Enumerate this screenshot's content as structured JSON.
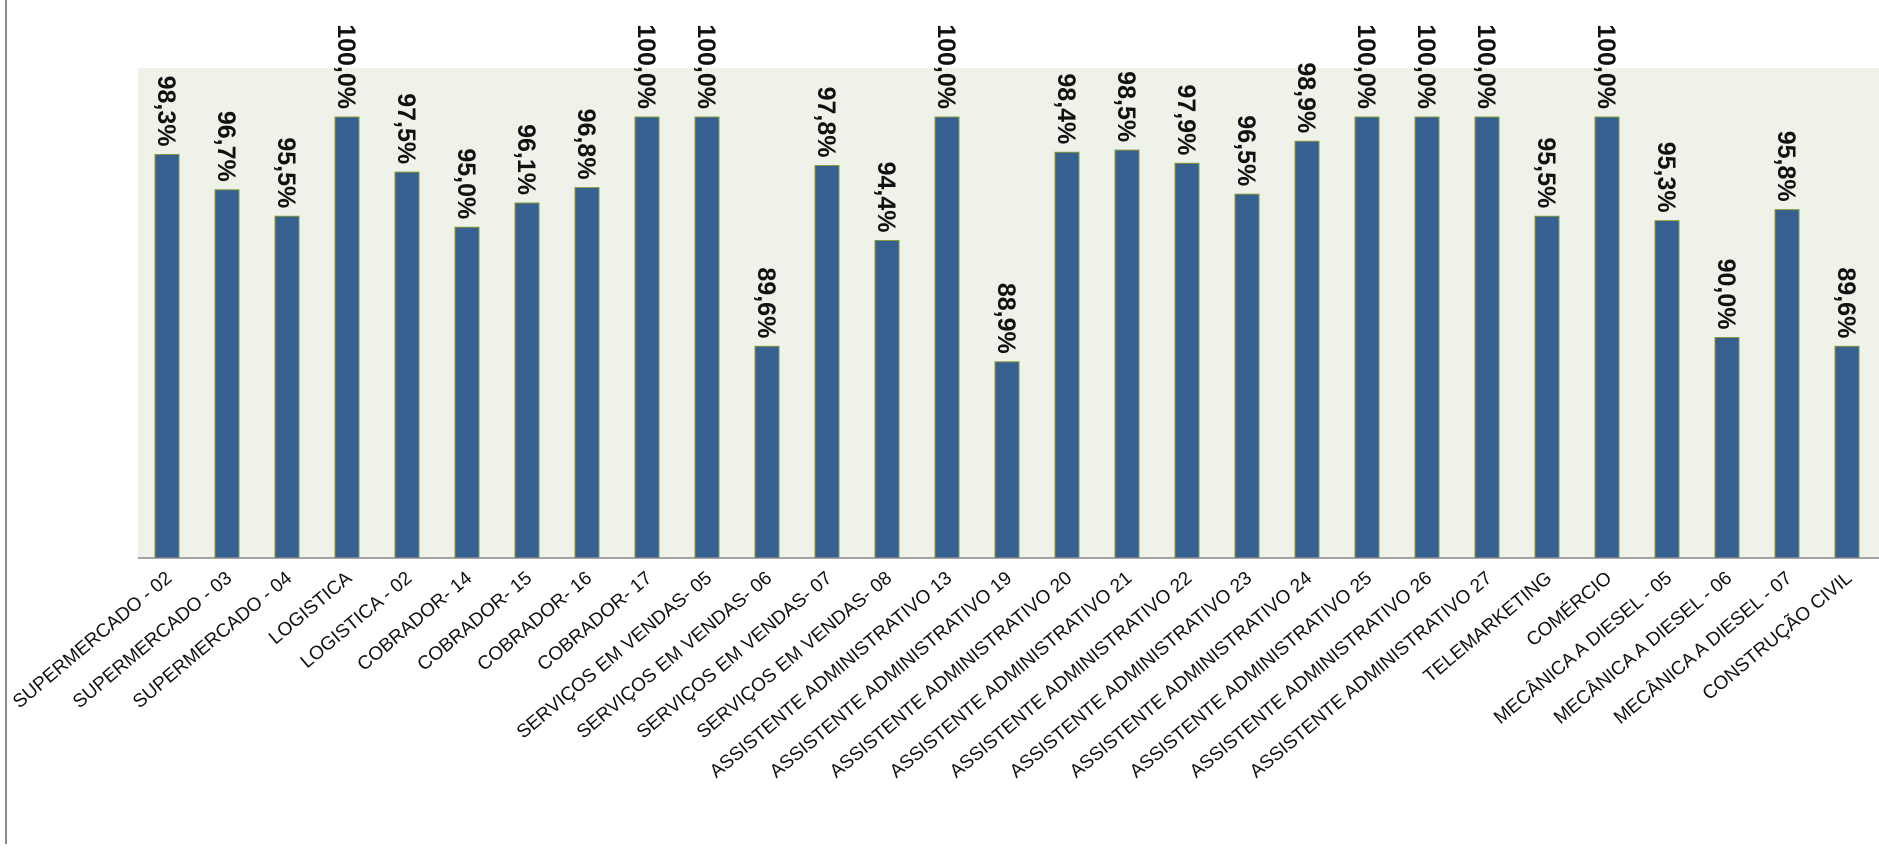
{
  "chart_data": {
    "type": "bar",
    "title": "",
    "xlabel": "",
    "ylabel": "",
    "ylim": [
      80,
      100
    ],
    "grid": false,
    "legend": "none",
    "categories": [
      "SUPERMERCADO - 02",
      "SUPERMERCADO - 03",
      "SUPERMERCADO - 04",
      "LOGISTICA",
      "LOGISTICA - 02",
      "COBRADOR- 14",
      "COBRADOR- 15",
      "COBRADOR- 16",
      "COBRADOR- 17",
      "SERVIÇOS EM VENDAS- 05",
      "SERVIÇOS EM VENDAS- 06",
      "SERVIÇOS EM VENDAS- 07",
      "SERVIÇOS EM VENDAS- 08",
      "ASSISTENTE ADMINISTRATIVO 13",
      "ASSISTENTE ADMINISTRATIVO 19",
      "ASSISTENTE ADMINISTRATIVO 20",
      "ASSISTENTE ADMINISTRATIVO 21",
      "ASSISTENTE ADMINISTRATIVO 22",
      "ASSISTENTE ADMINISTRATIVO 23",
      "ASSISTENTE ADMINISTRATIVO 24",
      "ASSISTENTE ADMINISTRATIVO 25",
      "ASSISTENTE ADMINISTRATIVO 26",
      "ASSISTENTE ADMINISTRATIVO 27",
      "TELEMARKETING",
      "COMÉRCIO",
      "MECÂNICA A DIESEL - 05",
      "MECÂNICA A DIESEL - 06",
      "MECÂNICA A DIESEL - 07",
      "CONSTRUÇÃO CIVIL"
    ],
    "values": [
      98.3,
      96.7,
      95.5,
      100.0,
      97.5,
      95.0,
      96.1,
      96.8,
      100.0,
      100.0,
      89.6,
      97.8,
      94.4,
      100.0,
      88.9,
      98.4,
      98.5,
      97.9,
      96.5,
      98.9,
      100.0,
      100.0,
      100.0,
      95.5,
      100.0,
      95.3,
      90.0,
      95.8,
      89.6
    ],
    "data_labels": [
      "98,3%",
      "96,7%",
      "95,5%",
      "100,0%",
      "97,5%",
      "95,0%",
      "96,1%",
      "96,8%",
      "100,0%",
      "100,0%",
      "89,6%",
      "97,8%",
      "94,4%",
      "100,0%",
      "88,9%",
      "98,4%",
      "98,5%",
      "97,9%",
      "96,5%",
      "98,9%",
      "100,0%",
      "100,0%",
      "100,0%",
      "95,5%",
      "100,0%",
      "95,3%",
      "90,0%",
      "95,8%",
      "89,6%"
    ],
    "colors": {
      "bar": "#36608f",
      "bar_edge": "#8a9a3a",
      "plot_background": "#eef2e8",
      "axis": "#888888",
      "frame": "#8a8a8a"
    }
  }
}
